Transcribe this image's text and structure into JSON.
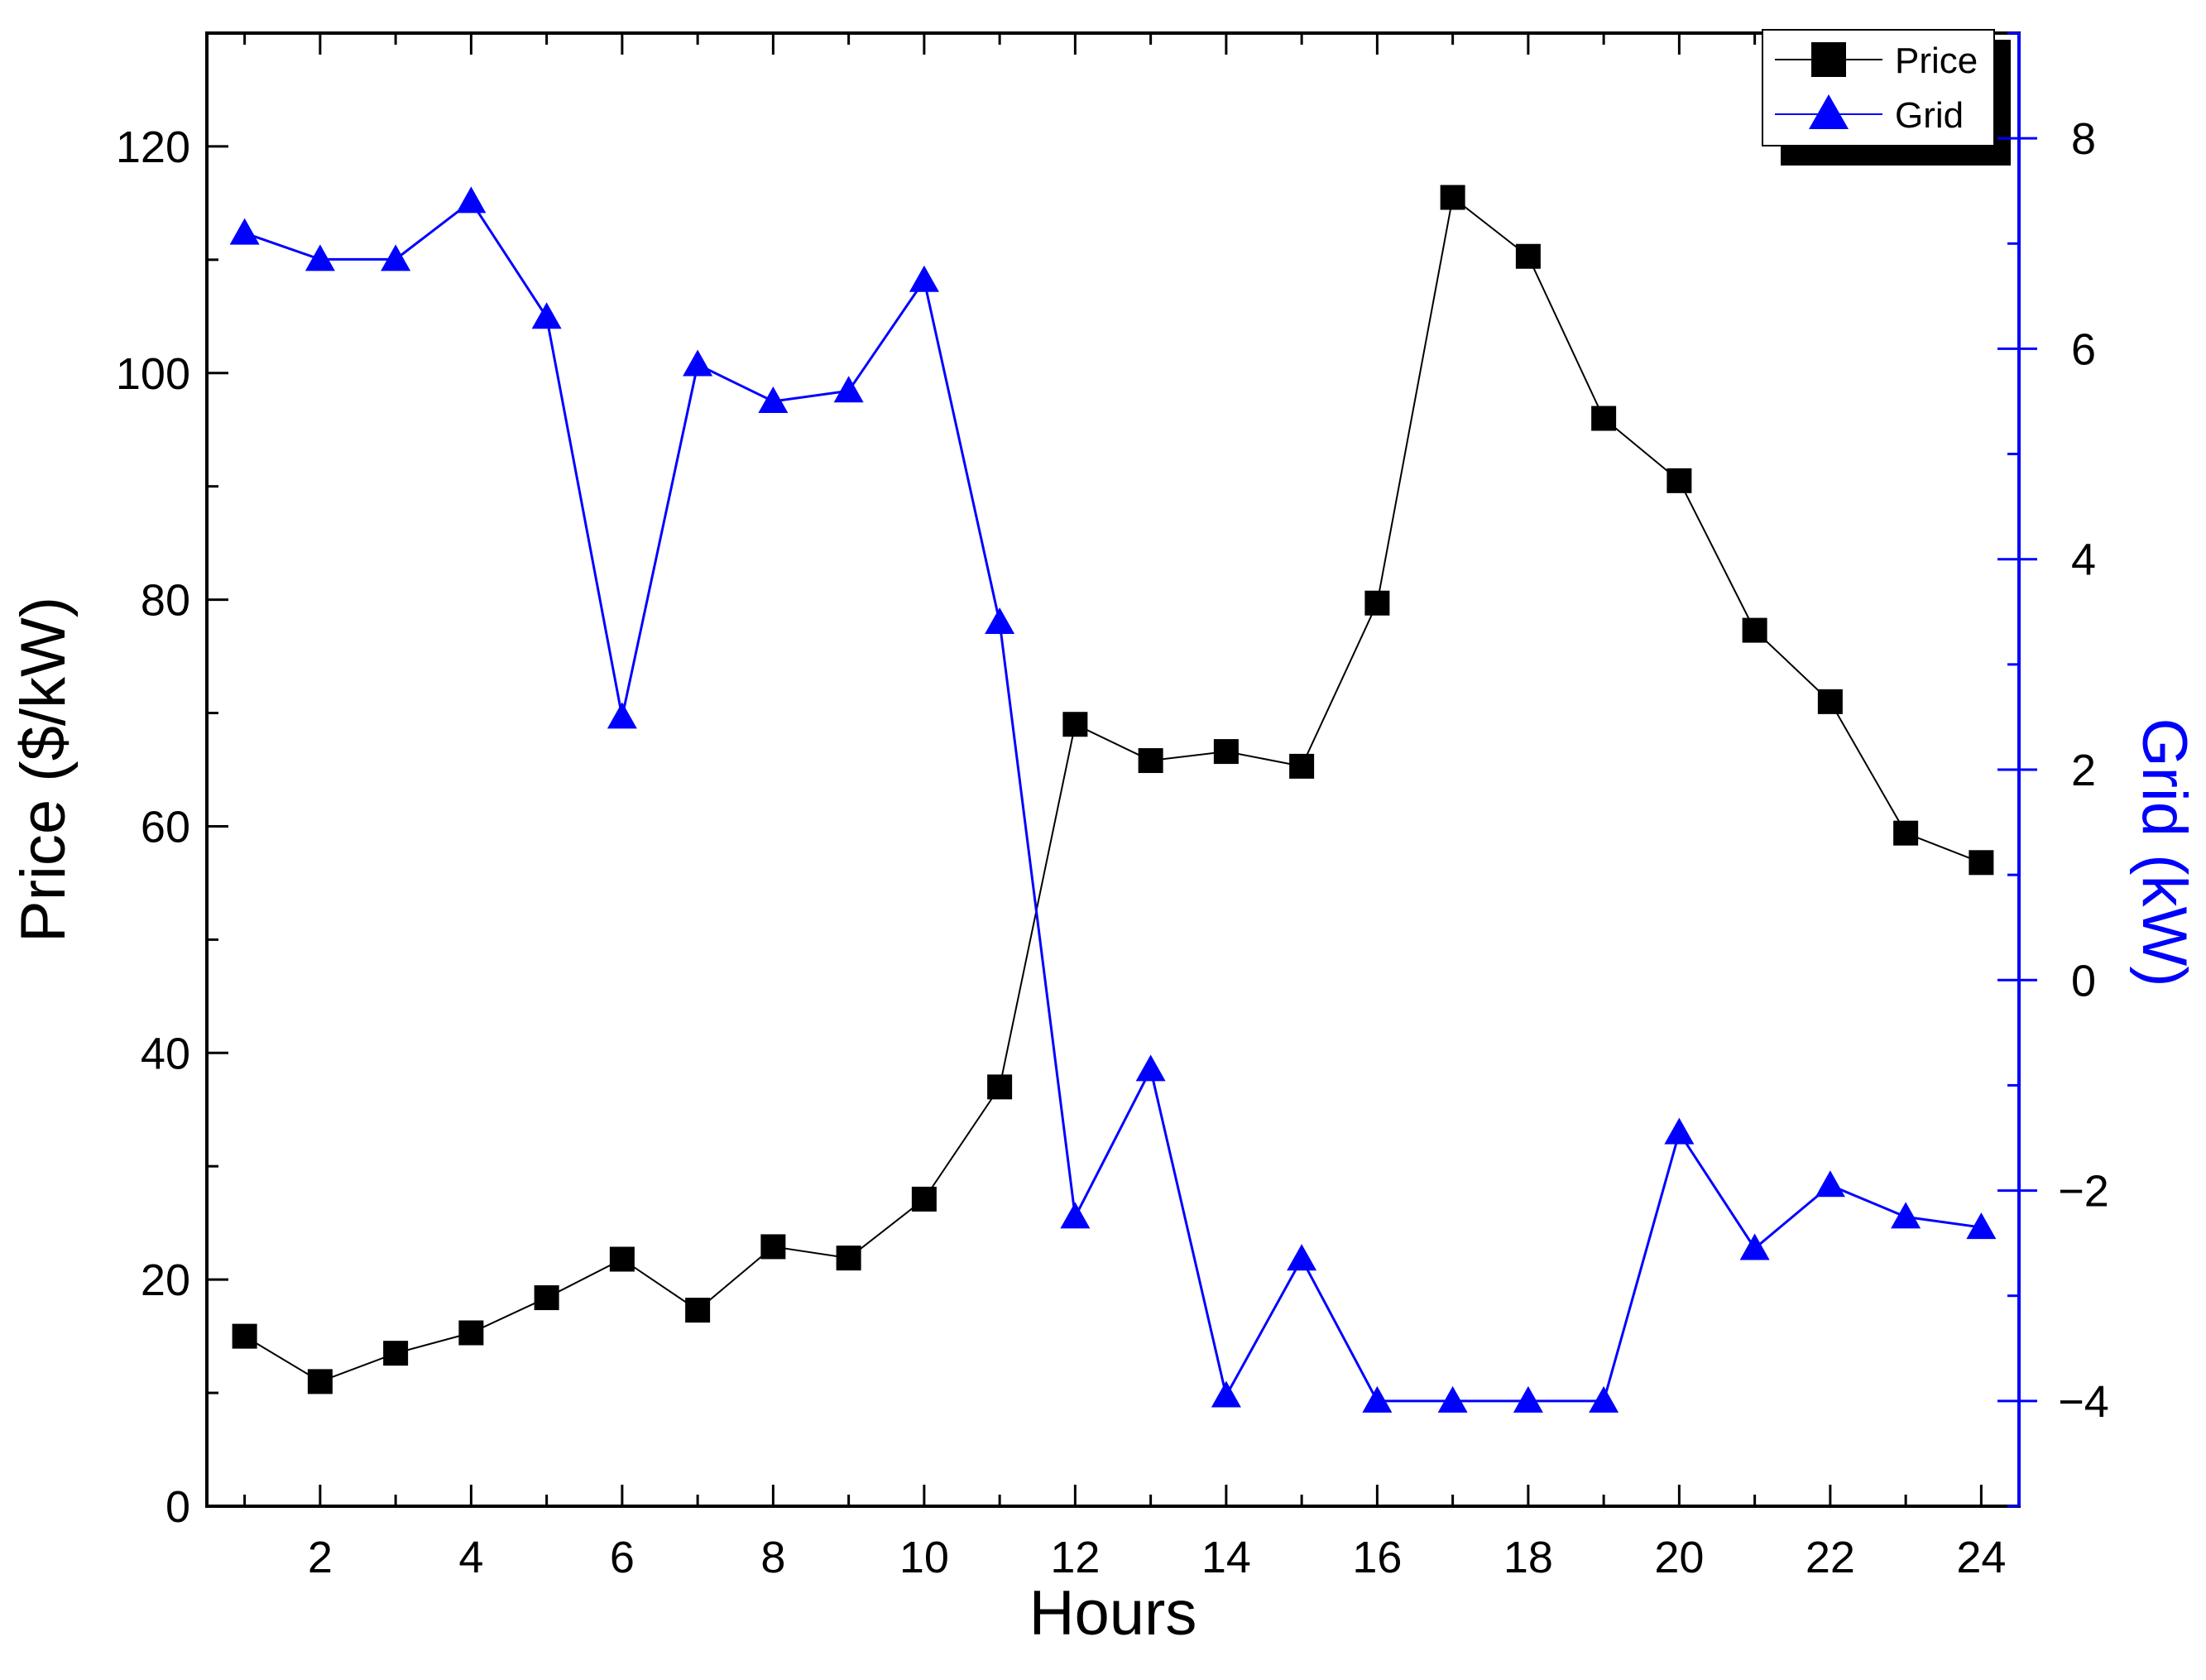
{
  "chart_data": {
    "type": "line",
    "xlabel": "Hours",
    "ylabel": "Price ($/kW)",
    "y2label": "Grid (kW)",
    "xlim": [
      0.5,
      24.5
    ],
    "ylim": [
      0,
      130
    ],
    "y2lim": [
      -5,
      9
    ],
    "x_ticks": [
      2,
      4,
      6,
      8,
      10,
      12,
      14,
      16,
      18,
      20,
      22,
      24
    ],
    "y_ticks": [
      0,
      20,
      40,
      60,
      80,
      100,
      120
    ],
    "y2_ticks": [
      -4,
      -2,
      0,
      2,
      4,
      6,
      8
    ],
    "legend_position": "top-right",
    "grid": false,
    "x": [
      1,
      2,
      3,
      4,
      5,
      6,
      7,
      8,
      9,
      10,
      11,
      12,
      13,
      14,
      15,
      16,
      17,
      18,
      19,
      20,
      21,
      22,
      23,
      24
    ],
    "series": [
      {
        "name": "Price",
        "axis": "left",
        "color": "#000000",
        "marker": "square",
        "values": [
          15,
          11,
          13.5,
          15.3,
          18.4,
          21.8,
          17.3,
          22.9,
          21.9,
          27.1,
          37,
          69,
          65.8,
          66.6,
          65.3,
          79.7,
          115.5,
          110.3,
          96,
          90.5,
          77.3,
          71,
          59.4,
          56.8
        ]
      },
      {
        "name": "Grid",
        "axis": "right",
        "color": "#0000ff",
        "marker": "triangle",
        "values": [
          7.1,
          6.85,
          6.85,
          7.4,
          6.3,
          2.5,
          5.85,
          5.5,
          5.6,
          6.65,
          3.4,
          -2.25,
          -0.85,
          -3.95,
          -2.65,
          -4.0,
          -4.0,
          -4.0,
          -4.0,
          -1.45,
          -2.55,
          -1.95,
          -2.25,
          -2.35
        ]
      }
    ]
  }
}
